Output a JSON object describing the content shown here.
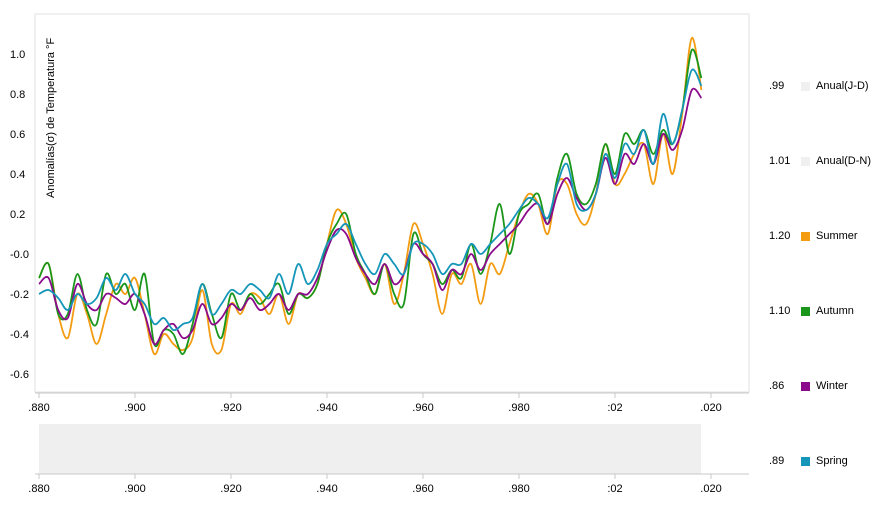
{
  "chart_data": {
    "type": "line",
    "title": "",
    "xlabel": "",
    "ylabel": "Anomalías(σ) de Temperatura °F",
    "xlim": [
      1880,
      2020
    ],
    "ylim": [
      -0.7,
      1.2
    ],
    "x_ticks": [
      ".880",
      ".900",
      ".920",
      ".940",
      ".960",
      ".980",
      ":02",
      ".020"
    ],
    "y_ticks": [
      "1.0",
      "0.8",
      "0.6",
      "0.4",
      "0.2",
      "-0.0",
      "-0.2",
      "-0.4",
      "-0.6"
    ],
    "navigator_ticks": [
      ".880",
      ".900",
      ".920",
      ".940",
      ".960",
      ".980",
      ":02",
      ".020"
    ],
    "grid": false,
    "legend_position": "right",
    "legend": [
      {
        "value": ".99",
        "label": "Anual(J-D)",
        "color": "#f0f0f0"
      },
      {
        "value": "1.01",
        "label": "Anual(D-N)",
        "color": "#f0f0f0"
      },
      {
        "value": "1.20",
        "label": "Summer",
        "color": "#f39c12"
      },
      {
        "value": "1.10",
        "label": "Autumn",
        "color": "#1a961a"
      },
      {
        "value": ".86",
        "label": "Winter",
        "color": "#8b0a8b"
      },
      {
        "value": ".89",
        "label": "Spring",
        "color": "#1596b9"
      }
    ],
    "series": [
      {
        "name": "Summer",
        "color": "#f39c12",
        "x": [
          1880,
          1882,
          1884,
          1886,
          1888,
          1890,
          1892,
          1894,
          1896,
          1898,
          1900,
          1902,
          1904,
          1906,
          1908,
          1910,
          1912,
          1914,
          1916,
          1918,
          1920,
          1922,
          1924,
          1926,
          1928,
          1930,
          1932,
          1934,
          1936,
          1938,
          1940,
          1942,
          1944,
          1946,
          1948,
          1950,
          1952,
          1954,
          1956,
          1958,
          1960,
          1962,
          1964,
          1966,
          1968,
          1970,
          1972,
          1974,
          1976,
          1978,
          1980,
          1982,
          1984,
          1986,
          1988,
          1990,
          1992,
          1994,
          1996,
          1998,
          2000,
          2002,
          2004,
          2006,
          2008,
          2010,
          2012,
          2014,
          2016,
          2018
        ],
        "y": [
          -0.12,
          -0.05,
          -0.3,
          -0.42,
          -0.2,
          -0.3,
          -0.45,
          -0.3,
          -0.15,
          -0.2,
          -0.12,
          -0.3,
          -0.5,
          -0.4,
          -0.45,
          -0.48,
          -0.42,
          -0.18,
          -0.45,
          -0.48,
          -0.25,
          -0.3,
          -0.2,
          -0.22,
          -0.3,
          -0.2,
          -0.35,
          -0.2,
          -0.22,
          -0.15,
          0.05,
          0.22,
          0.15,
          -0.02,
          -0.12,
          -0.2,
          -0.05,
          -0.25,
          -0.1,
          0.15,
          0.05,
          -0.1,
          -0.3,
          -0.1,
          -0.15,
          -0.05,
          -0.25,
          -0.05,
          -0.1,
          0.05,
          0.2,
          0.3,
          0.25,
          0.1,
          0.35,
          0.35,
          0.2,
          0.15,
          0.3,
          0.55,
          0.35,
          0.4,
          0.5,
          0.55,
          0.35,
          0.6,
          0.4,
          0.7,
          1.08,
          0.82
        ]
      },
      {
        "name": "Autumn",
        "color": "#1a961a",
        "x": [
          1880,
          1882,
          1884,
          1886,
          1888,
          1890,
          1892,
          1894,
          1896,
          1898,
          1900,
          1902,
          1904,
          1906,
          1908,
          1910,
          1912,
          1914,
          1916,
          1918,
          1920,
          1922,
          1924,
          1926,
          1928,
          1930,
          1932,
          1934,
          1936,
          1938,
          1940,
          1942,
          1944,
          1946,
          1948,
          1950,
          1952,
          1954,
          1956,
          1958,
          1960,
          1962,
          1964,
          1966,
          1968,
          1970,
          1972,
          1974,
          1976,
          1978,
          1980,
          1982,
          1984,
          1986,
          1988,
          1990,
          1992,
          1994,
          1996,
          1998,
          2000,
          2002,
          2004,
          2006,
          2008,
          2010,
          2012,
          2014,
          2016,
          2018
        ],
        "y": [
          -0.12,
          -0.05,
          -0.3,
          -0.3,
          -0.1,
          -0.28,
          -0.35,
          -0.1,
          -0.2,
          -0.15,
          -0.28,
          -0.1,
          -0.45,
          -0.38,
          -0.4,
          -0.5,
          -0.35,
          -0.15,
          -0.3,
          -0.42,
          -0.2,
          -0.28,
          -0.2,
          -0.25,
          -0.2,
          -0.15,
          -0.3,
          -0.2,
          -0.22,
          -0.15,
          0.05,
          0.15,
          0.2,
          0.0,
          -0.1,
          -0.2,
          -0.05,
          -0.2,
          -0.25,
          0.1,
          0.0,
          -0.05,
          -0.15,
          -0.08,
          -0.12,
          0.05,
          -0.1,
          0.05,
          0.25,
          0.0,
          0.2,
          0.25,
          0.3,
          0.15,
          0.38,
          0.5,
          0.3,
          0.25,
          0.35,
          0.55,
          0.4,
          0.6,
          0.55,
          0.62,
          0.5,
          0.62,
          0.55,
          0.72,
          1.02,
          0.88
        ]
      },
      {
        "name": "Winter",
        "color": "#8b0a8b",
        "x": [
          1880,
          1882,
          1884,
          1886,
          1888,
          1890,
          1892,
          1894,
          1896,
          1898,
          1900,
          1902,
          1904,
          1906,
          1908,
          1910,
          1912,
          1914,
          1916,
          1918,
          1920,
          1922,
          1924,
          1926,
          1928,
          1930,
          1932,
          1934,
          1936,
          1938,
          1940,
          1942,
          1944,
          1946,
          1948,
          1950,
          1952,
          1954,
          1956,
          1958,
          1960,
          1962,
          1964,
          1966,
          1968,
          1970,
          1972,
          1974,
          1976,
          1978,
          1980,
          1982,
          1984,
          1986,
          1988,
          1990,
          1992,
          1994,
          1996,
          1998,
          2000,
          2002,
          2004,
          2006,
          2008,
          2010,
          2012,
          2014,
          2016,
          2018
        ],
        "y": [
          -0.15,
          -0.12,
          -0.28,
          -0.32,
          -0.15,
          -0.25,
          -0.28,
          -0.2,
          -0.22,
          -0.25,
          -0.2,
          -0.3,
          -0.45,
          -0.38,
          -0.35,
          -0.42,
          -0.38,
          -0.25,
          -0.35,
          -0.32,
          -0.25,
          -0.28,
          -0.22,
          -0.28,
          -0.25,
          -0.2,
          -0.28,
          -0.2,
          -0.2,
          -0.12,
          0.02,
          0.12,
          0.1,
          -0.02,
          -0.1,
          -0.15,
          -0.05,
          -0.15,
          -0.1,
          0.05,
          0.0,
          -0.05,
          -0.18,
          -0.08,
          -0.1,
          0.0,
          -0.08,
          0.0,
          0.05,
          0.1,
          0.15,
          0.22,
          0.25,
          0.15,
          0.3,
          0.38,
          0.28,
          0.22,
          0.3,
          0.48,
          0.35,
          0.5,
          0.45,
          0.55,
          0.45,
          0.6,
          0.52,
          0.62,
          0.82,
          0.78
        ]
      },
      {
        "name": "Spring",
        "color": "#1596b9",
        "x": [
          1880,
          1882,
          1884,
          1886,
          1888,
          1890,
          1892,
          1894,
          1896,
          1898,
          1900,
          1902,
          1904,
          1906,
          1908,
          1910,
          1912,
          1914,
          1916,
          1918,
          1920,
          1922,
          1924,
          1926,
          1928,
          1930,
          1932,
          1934,
          1936,
          1938,
          1940,
          1942,
          1944,
          1946,
          1948,
          1950,
          1952,
          1954,
          1956,
          1958,
          1960,
          1962,
          1964,
          1966,
          1968,
          1970,
          1972,
          1974,
          1976,
          1978,
          1980,
          1982,
          1984,
          1986,
          1988,
          1990,
          1992,
          1994,
          1996,
          1998,
          2000,
          2002,
          2004,
          2006,
          2008,
          2010,
          2012,
          2014,
          2016,
          2018
        ],
        "y": [
          -0.2,
          -0.18,
          -0.22,
          -0.28,
          -0.2,
          -0.25,
          -0.22,
          -0.12,
          -0.18,
          -0.1,
          -0.2,
          -0.25,
          -0.35,
          -0.32,
          -0.38,
          -0.35,
          -0.32,
          -0.15,
          -0.3,
          -0.25,
          -0.18,
          -0.2,
          -0.15,
          -0.18,
          -0.22,
          -0.1,
          -0.2,
          -0.05,
          -0.15,
          -0.08,
          0.05,
          0.1,
          0.15,
          0.05,
          -0.05,
          -0.1,
          0.0,
          -0.05,
          -0.1,
          0.05,
          0.05,
          0.0,
          -0.1,
          -0.05,
          -0.05,
          0.05,
          0.0,
          0.05,
          0.1,
          0.15,
          0.22,
          0.28,
          0.25,
          0.18,
          0.35,
          0.45,
          0.25,
          0.22,
          0.3,
          0.5,
          0.38,
          0.55,
          0.5,
          0.62,
          0.45,
          0.7,
          0.55,
          0.72,
          0.92,
          0.84
        ]
      }
    ]
  }
}
